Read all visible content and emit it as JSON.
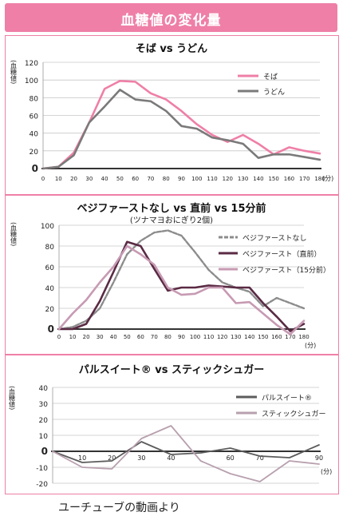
{
  "header": {
    "title": "血糖値の変化量"
  },
  "caption": "ユーチューブの動画より",
  "colors": {
    "pink": "#ef7fa7",
    "gray": "#7a7a7a",
    "dark_plum": "#5a2a44",
    "mauve": "#c79ab3",
    "gray_light": "#8c8c8c"
  },
  "chart_data": [
    {
      "type": "line",
      "title": "そば vs うどん",
      "ylabel": "(血糖値)",
      "xunit": "(分)",
      "x": [
        0,
        10,
        20,
        30,
        40,
        50,
        60,
        70,
        80,
        90,
        100,
        110,
        120,
        130,
        140,
        150,
        160,
        170,
        180
      ],
      "ylim": [
        0,
        120
      ],
      "yticks": [
        0,
        20,
        40,
        60,
        80,
        100,
        120
      ],
      "legend_position": "top-right",
      "series": [
        {
          "name": "そば",
          "color": "#ef7fa7",
          "values": [
            0,
            2,
            18,
            52,
            90,
            99,
            98,
            85,
            78,
            65,
            50,
            38,
            30,
            38,
            28,
            16,
            24,
            20,
            17
          ]
        },
        {
          "name": "うどん",
          "color": "#7a7a7a",
          "values": [
            0,
            2,
            15,
            52,
            70,
            89,
            78,
            76,
            65,
            48,
            45,
            35,
            32,
            28,
            12,
            16,
            16,
            13,
            10
          ]
        }
      ]
    },
    {
      "type": "line",
      "title": "ベジファーストなし vs 直前 vs 15分前",
      "subtitle": "(ツナマヨおにぎり2個)",
      "ylabel": "(血糖値)",
      "xunit": "(分)",
      "x": [
        0,
        10,
        20,
        30,
        40,
        50,
        60,
        70,
        80,
        90,
        100,
        110,
        120,
        130,
        140,
        150,
        160,
        170,
        180
      ],
      "ylim": [
        0,
        100
      ],
      "yticks": [
        0,
        20,
        40,
        60,
        80,
        100
      ],
      "legend_position": "top-right",
      "series": [
        {
          "name": "ベジファーストなし",
          "color": "#8c8c8c",
          "dashed": true,
          "values": [
            0,
            2,
            8,
            20,
            45,
            72,
            85,
            93,
            95,
            90,
            74,
            57,
            45,
            40,
            36,
            22,
            30,
            25,
            20
          ]
        },
        {
          "name": "ベジファースト（直前）",
          "color": "#5a2a44",
          "dashed": false,
          "values": [
            0,
            0,
            5,
            27,
            55,
            84,
            80,
            58,
            37,
            40,
            40,
            42,
            41,
            40,
            40,
            25,
            12,
            -2,
            5
          ]
        },
        {
          "name": "ベジファースト（15分前）",
          "color": "#c79ab3",
          "dashed": false,
          "values": [
            0,
            15,
            28,
            45,
            60,
            80,
            72,
            62,
            40,
            33,
            34,
            40,
            40,
            25,
            26,
            15,
            4,
            -5,
            8
          ]
        }
      ]
    },
    {
      "type": "line",
      "title": "パルスイート® vs スティックシュガー",
      "ylabel": "(血糖値)",
      "xunit": "(分)",
      "x": [
        0,
        10,
        20,
        30,
        40,
        50,
        60,
        70,
        80,
        90
      ],
      "xticks": [
        0,
        10,
        20,
        30,
        40,
        50,
        60,
        70,
        80,
        90
      ],
      "xtick_labels_shown": [
        0,
        10,
        20,
        30,
        40,
        50,
        60,
        70,
        80,
        90
      ],
      "ylim": [
        -20,
        40
      ],
      "yticks": [
        -20,
        -10,
        0,
        10,
        20,
        30,
        40
      ],
      "legend_position": "top-right",
      "series": [
        {
          "name": "パルスイート®",
          "color": "#5c5c5c",
          "values": [
            0,
            -7,
            -6,
            6,
            -2,
            -1,
            2,
            -3,
            -4,
            4
          ]
        },
        {
          "name": "スティックシュガー",
          "color": "#b8a0ae",
          "values": [
            0,
            -10,
            -11,
            8,
            16,
            -6,
            -14,
            -19,
            -6,
            -8
          ]
        }
      ]
    }
  ]
}
